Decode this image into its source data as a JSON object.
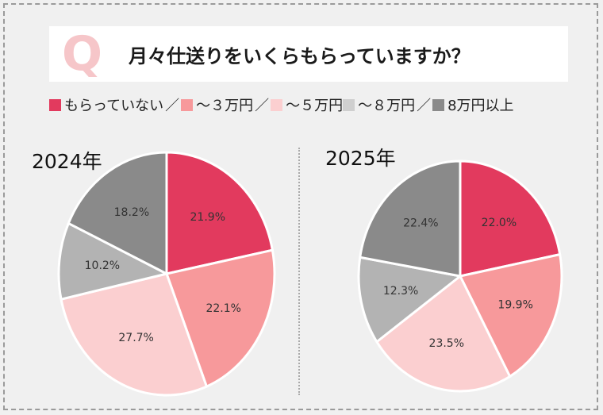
{
  "question": {
    "letter": "Q",
    "text": "月々仕送りをいくらもらっていますか？"
  },
  "legend": {
    "separator": "／",
    "items": [
      {
        "label": "もらっていない",
        "color": "#e23a5e"
      },
      {
        "label": "〜３万円",
        "color": "#f7999b"
      },
      {
        "label": "〜５万円",
        "color": "#fbcfd0"
      },
      {
        "label": "〜８万円",
        "color": "#cfcfcf"
      },
      {
        "label": "8万円以上",
        "color": "#8a8a8a"
      }
    ]
  },
  "chart_data": [
    {
      "type": "pie",
      "title": "2024年",
      "categories": [
        "もらっていない",
        "〜３万円",
        "〜５万円",
        "〜８万円",
        "8万円以上"
      ],
      "values": [
        21.9,
        22.1,
        27.7,
        10.2,
        18.2
      ],
      "labels": [
        "21.9%",
        "22.1%",
        "27.7%",
        "10.2%",
        "18.2%"
      ],
      "colors": [
        "#e23a5e",
        "#f7999b",
        "#fbcfd0",
        "#b3b3b3",
        "#8a8a8a"
      ],
      "start": "12 o'clock",
      "direction": "clockwise"
    },
    {
      "type": "pie",
      "title": "2025年",
      "categories": [
        "もらっていない",
        "〜３万円",
        "〜５万円",
        "〜８万円",
        "8万円以上"
      ],
      "values": [
        22.0,
        19.9,
        23.5,
        12.3,
        22.4
      ],
      "labels": [
        "22.0%",
        "19.9%",
        "23.5%",
        "12.3%",
        "22.4%"
      ],
      "colors": [
        "#e23a5e",
        "#f7999b",
        "#fbcfd0",
        "#b3b3b3",
        "#8a8a8a"
      ],
      "start": "12 o'clock",
      "direction": "clockwise"
    }
  ]
}
